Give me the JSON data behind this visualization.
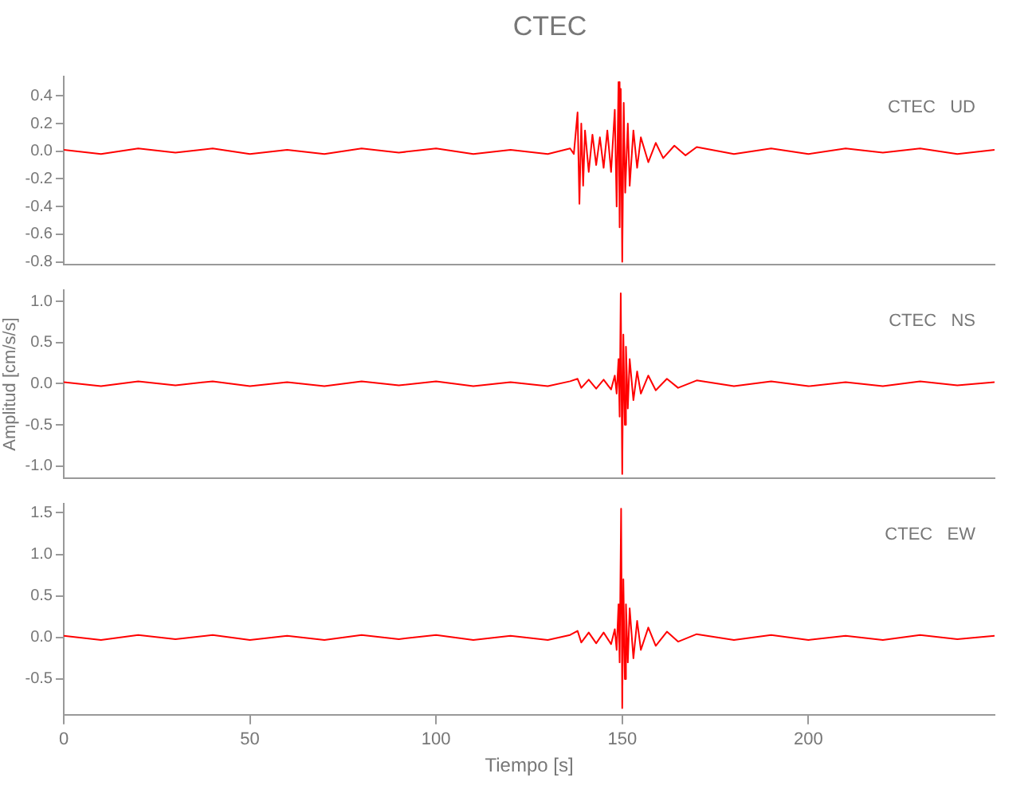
{
  "chart_data": [
    {
      "type": "line",
      "title": "CTEC",
      "annotations": [
        "CTEC   UD"
      ],
      "tick_labels": "y",
      "x": [
        0,
        10,
        20,
        30,
        40,
        50,
        60,
        70,
        80,
        90,
        100,
        110,
        120,
        130,
        136,
        137,
        138,
        138.5,
        139,
        139.5,
        140,
        141,
        142,
        143,
        144,
        145,
        146,
        147,
        148,
        148.5,
        149,
        149.3,
        149.6,
        150,
        150.4,
        150.8,
        151.5,
        152,
        153,
        154,
        155,
        157,
        159,
        161,
        164,
        167,
        170,
        180,
        190,
        200,
        210,
        220,
        230,
        240,
        250
      ],
      "series": [
        {
          "color": "#ff0000",
          "values": [
            0.01,
            -0.02,
            0.02,
            -0.01,
            0.02,
            -0.02,
            0.01,
            -0.02,
            0.02,
            -0.01,
            0.02,
            -0.02,
            0.01,
            -0.02,
            0.02,
            -0.02,
            0.28,
            -0.38,
            0.2,
            -0.25,
            0.15,
            -0.15,
            0.12,
            -0.1,
            0.1,
            -0.12,
            0.15,
            -0.15,
            0.3,
            -0.4,
            0.5,
            -0.55,
            0.45,
            -0.8,
            0.35,
            -0.3,
            0.2,
            -0.25,
            0.15,
            -0.12,
            0.1,
            -0.08,
            0.06,
            -0.05,
            0.04,
            -0.03,
            0.03,
            -0.02,
            0.02,
            -0.02,
            0.02,
            -0.01,
            0.02,
            -0.02,
            0.01
          ]
        }
      ],
      "xlim": [
        0,
        250
      ],
      "xticks": [
        0,
        50,
        100,
        150,
        200
      ],
      "ylim": [
        -0.82,
        0.54
      ],
      "yticks": [
        0.4,
        0.2,
        {
          "value": 0,
          "label": "0.0"
        },
        -0.2,
        -0.4,
        -0.6,
        -0.8
      ]
    },
    {
      "type": "line",
      "ylabel": "Amplitud [cm/s/s]",
      "annotations": [
        "CTEC   NS"
      ],
      "tick_labels": "y",
      "x": [
        0,
        10,
        20,
        30,
        40,
        50,
        60,
        70,
        80,
        90,
        100,
        110,
        120,
        130,
        136,
        138,
        139,
        141,
        143,
        145,
        147,
        148,
        148.5,
        149,
        149.3,
        149.6,
        150,
        150.3,
        150.7,
        151,
        151.5,
        152,
        153,
        154,
        155,
        157,
        159,
        162,
        165,
        170,
        180,
        190,
        200,
        210,
        220,
        230,
        240,
        250
      ],
      "series": [
        {
          "color": "#ff0000",
          "values": [
            0.02,
            -0.03,
            0.03,
            -0.02,
            0.03,
            -0.03,
            0.02,
            -0.03,
            0.03,
            -0.02,
            0.03,
            -0.03,
            0.02,
            -0.03,
            0.03,
            0.06,
            -0.05,
            0.05,
            -0.06,
            0.05,
            -0.07,
            0.1,
            -0.12,
            0.3,
            -0.4,
            1.1,
            -1.1,
            0.6,
            -0.5,
            0.45,
            -0.3,
            0.3,
            -0.2,
            0.15,
            -0.12,
            0.1,
            -0.08,
            0.06,
            -0.05,
            0.04,
            -0.03,
            0.03,
            -0.03,
            0.02,
            -0.03,
            0.03,
            -0.02,
            0.02
          ]
        }
      ],
      "xlim": [
        0,
        250
      ],
      "xticks": [
        0,
        50,
        100,
        150,
        200
      ],
      "ylim": [
        -1.15,
        1.14
      ],
      "yticks": [
        {
          "value": 1,
          "label": "1.0"
        },
        0.5,
        {
          "value": 0,
          "label": "0.0"
        },
        -0.5,
        {
          "value": -1,
          "label": "-1.0"
        }
      ]
    },
    {
      "type": "line",
      "xlabel": "Tiempo [s]",
      "annotations": [
        "CTEC   EW"
      ],
      "x": [
        0,
        10,
        20,
        30,
        40,
        50,
        60,
        70,
        80,
        90,
        100,
        110,
        120,
        130,
        136,
        138,
        139,
        141,
        143,
        145,
        147,
        148,
        148.5,
        149,
        149.3,
        149.7,
        150,
        150.3,
        150.7,
        151,
        151.5,
        152,
        153,
        154,
        155,
        157,
        159,
        162,
        165,
        170,
        180,
        190,
        200,
        210,
        220,
        230,
        240,
        250
      ],
      "series": [
        {
          "color": "#ff0000",
          "values": [
            0.02,
            -0.03,
            0.03,
            -0.02,
            0.03,
            -0.03,
            0.02,
            -0.03,
            0.03,
            -0.02,
            0.03,
            -0.03,
            0.02,
            -0.03,
            0.03,
            0.08,
            -0.06,
            0.06,
            -0.07,
            0.06,
            -0.08,
            0.1,
            -0.15,
            0.4,
            -0.3,
            1.55,
            -0.85,
            0.7,
            -0.5,
            0.4,
            -0.3,
            0.35,
            -0.25,
            0.2,
            -0.15,
            0.12,
            -0.1,
            0.07,
            -0.05,
            0.04,
            -0.03,
            0.03,
            -0.03,
            0.02,
            -0.03,
            0.03,
            -0.02,
            0.02
          ]
        }
      ],
      "xlim": [
        0,
        250
      ],
      "xticks": [
        0,
        50,
        100,
        150,
        200
      ],
      "ylim": [
        -0.93,
        1.61
      ],
      "yticks": [
        1.5,
        {
          "value": 1,
          "label": "1.0"
        },
        0.5,
        {
          "value": 0,
          "label": "0.0"
        },
        -0.5
      ]
    }
  ]
}
